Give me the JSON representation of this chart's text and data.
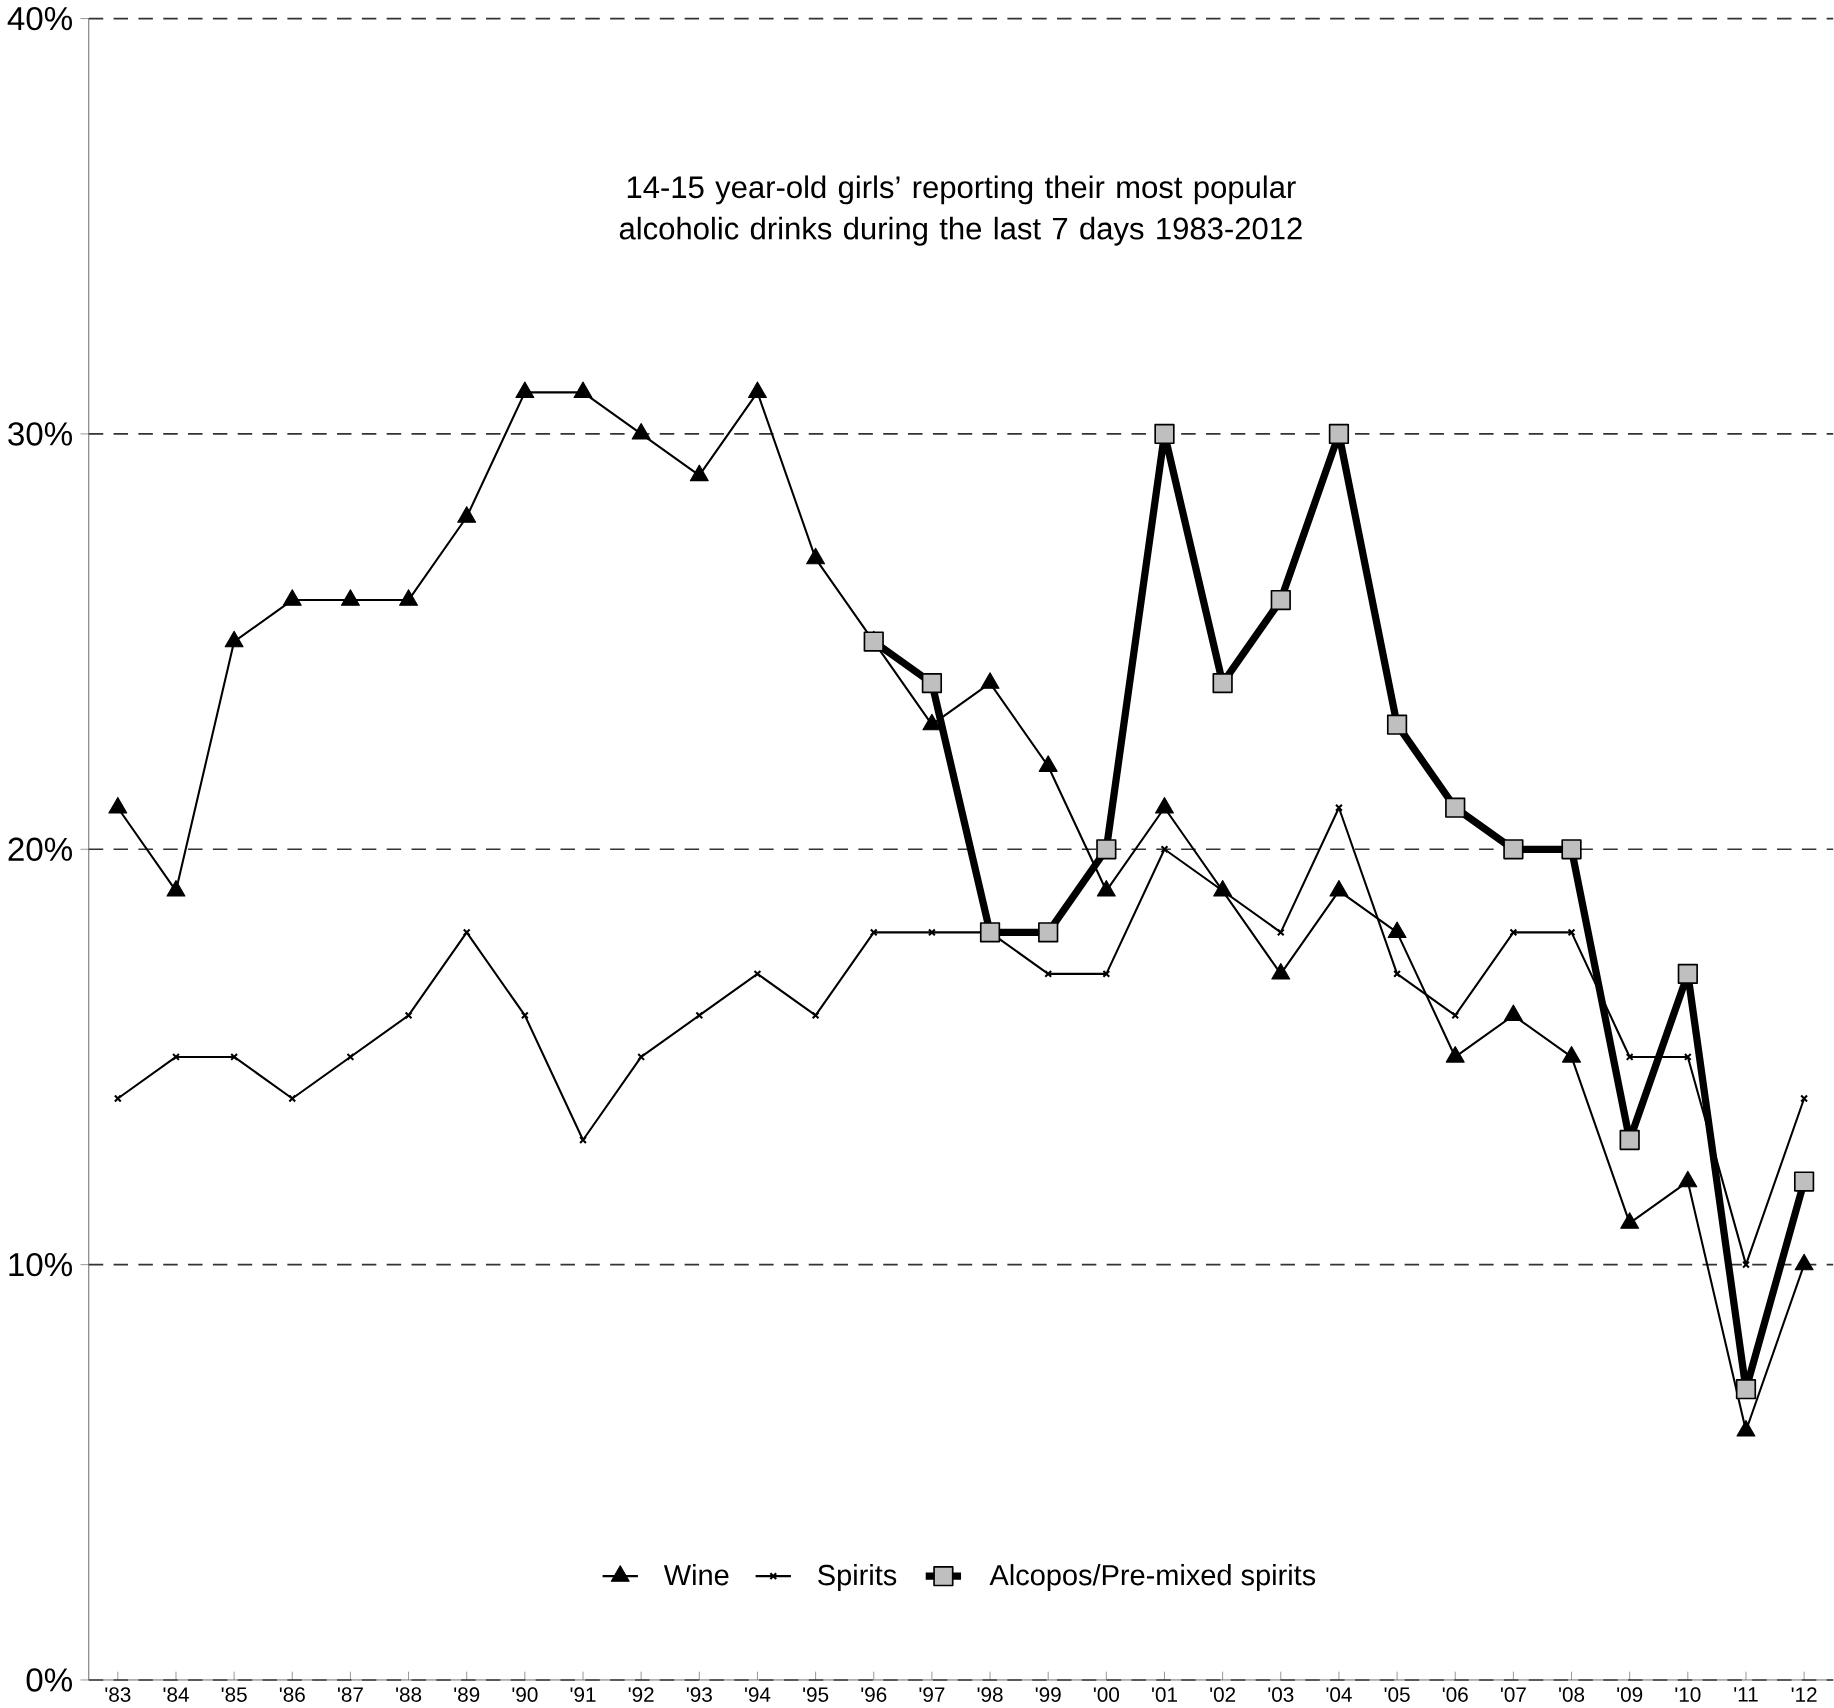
{
  "chart_data": {
    "type": "line",
    "title": "14-15 year-old girls’ reporting their most popular alcoholic drinks during the last 7 days 1983-2012",
    "categories": [
      "'83",
      "'84",
      "'85",
      "'86",
      "'87",
      "'88",
      "'89",
      "'90",
      "'91",
      "'92",
      "'93",
      "'94",
      "'95",
      "'96",
      "'97",
      "'98",
      "'99",
      "'00",
      "'01",
      "'02",
      "'03",
      "'04",
      "'05",
      "'06",
      "'07",
      "'08",
      "'09",
      "'10",
      "'11",
      "'12"
    ],
    "series": [
      {
        "name": "Wine",
        "color": "#000000",
        "marker": "triangle",
        "values": [
          21,
          19,
          25,
          26,
          26,
          26,
          28,
          31,
          31,
          30,
          29,
          31,
          27,
          25,
          23,
          24,
          22,
          19,
          21,
          19,
          17,
          19,
          18,
          15,
          16,
          15,
          11,
          12,
          6,
          10
        ]
      },
      {
        "name": "Spirits",
        "color": "#000000",
        "marker": "cross",
        "values": [
          14,
          15,
          15,
          14,
          15,
          16,
          18,
          16,
          13,
          15,
          16,
          17,
          16,
          18,
          18,
          18,
          17,
          17,
          20,
          19,
          18,
          21,
          17,
          16,
          18,
          18,
          15,
          15,
          10,
          14
        ]
      },
      {
        "name": "Alcopos/Pre-mixed spirits",
        "color": "#bfbfbf",
        "marker": "square",
        "values": [
          null,
          null,
          null,
          null,
          null,
          null,
          null,
          null,
          null,
          null,
          null,
          null,
          null,
          25,
          24,
          18,
          18,
          20,
          30,
          24,
          26,
          30,
          23,
          21,
          20,
          20,
          13,
          17,
          7,
          12
        ]
      }
    ],
    "ylim": [
      0,
      40
    ],
    "yticks": [
      {
        "value": 0,
        "label": "0%"
      },
      {
        "value": 10,
        "label": "10%"
      },
      {
        "value": 20,
        "label": "20%"
      },
      {
        "value": 30,
        "label": "30%"
      },
      {
        "value": 40,
        "label": "40%"
      }
    ],
    "grid": "y",
    "legend": "bottom",
    "line_style": "solid"
  }
}
